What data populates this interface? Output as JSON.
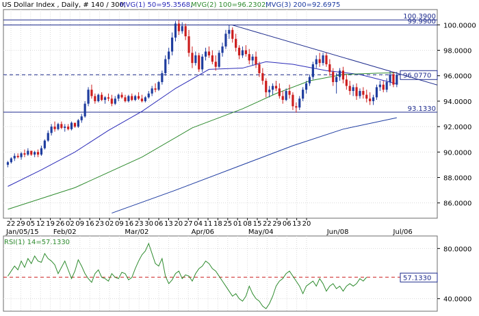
{
  "header": {
    "symbol": "US Dollar Index , Daily, # 140 / 300,",
    "mvg1": "MVG(1) 50=95.3568,",
    "mvg2": "MVG(2) 100=96.2302,",
    "mvg3": "MVG(3) 200=92.6975"
  },
  "colors": {
    "candle_up": "#1f3d9e",
    "candle_down": "#cc1d1d",
    "ma50": "#2a2ab8",
    "ma100": "#2e8b2e",
    "ma200": "#1c3aa0",
    "rsi": "#2e8b2e",
    "hline": "#1c2a8c",
    "dashed": "#1c2a8c",
    "rsi_level": "#cc1d1d"
  },
  "chart_data": [
    {
      "type": "candlestick",
      "title": "US Dollar Index , Daily",
      "ylim": [
        84.8,
        101.2
      ],
      "y_ticks": [
        "100.0000",
        "98.0000",
        "96.0000",
        "94.0000",
        "92.0000",
        "90.0000",
        "88.0000",
        "86.0000"
      ],
      "x_ticks": [
        "22",
        "29",
        "05",
        "12",
        "19",
        "26",
        "02",
        "09",
        "16",
        "23",
        "02",
        "09",
        "16",
        "23",
        "30",
        "06",
        "13",
        "20",
        "27",
        "04",
        "11",
        "18",
        "25",
        "01",
        "08",
        "15",
        "22",
        "29",
        "06",
        "13",
        "20"
      ],
      "month_labels": [
        "Jan/05/15",
        "Feb/02",
        "Mar/02",
        "Apr/06",
        "May/04",
        "Jun/08",
        "Jul/06"
      ],
      "horizontal_lines": [
        {
          "label": "100.3900",
          "value": 100.39
        },
        {
          "label": "99.9900",
          "value": 99.99
        },
        {
          "label": "93.1330",
          "value": 93.133
        }
      ],
      "current_price": {
        "label": "96.0770",
        "value": 96.077
      },
      "trendline": {
        "from": [
          67,
          99.98
        ],
        "to": [
          129,
          95.2
        ]
      },
      "candles": [
        [
          0,
          89.0,
          89.3,
          88.8,
          89.2
        ],
        [
          1,
          89.2,
          89.6,
          89.1,
          89.5
        ],
        [
          2,
          89.5,
          89.9,
          89.3,
          89.7
        ],
        [
          3,
          89.7,
          89.9,
          89.5,
          89.6
        ],
        [
          4,
          89.6,
          90.0,
          89.4,
          89.9
        ],
        [
          5,
          89.9,
          90.2,
          89.6,
          89.8
        ],
        [
          6,
          89.8,
          90.3,
          89.7,
          90.1
        ],
        [
          7,
          90.1,
          90.1,
          89.7,
          89.8
        ],
        [
          8,
          89.8,
          90.1,
          89.6,
          90.0
        ],
        [
          9,
          90.0,
          90.2,
          89.6,
          89.8
        ],
        [
          10,
          89.8,
          90.5,
          89.7,
          90.3
        ],
        [
          11,
          90.3,
          91.0,
          90.2,
          90.9
        ],
        [
          12,
          90.9,
          91.7,
          90.8,
          91.5
        ],
        [
          13,
          91.5,
          92.2,
          91.3,
          92.0
        ],
        [
          14,
          92.0,
          92.4,
          91.6,
          91.8
        ],
        [
          15,
          91.8,
          92.3,
          91.7,
          92.2
        ],
        [
          16,
          92.2,
          92.4,
          91.8,
          91.9
        ],
        [
          17,
          91.9,
          92.2,
          91.6,
          92.0
        ],
        [
          18,
          92.0,
          92.2,
          91.7,
          91.8
        ],
        [
          19,
          91.8,
          92.4,
          91.7,
          92.3
        ],
        [
          20,
          92.3,
          92.3,
          91.9,
          92.0
        ],
        [
          21,
          92.0,
          92.6,
          91.9,
          92.5
        ],
        [
          22,
          92.5,
          93.0,
          92.3,
          92.8
        ],
        [
          23,
          92.8,
          94.0,
          92.7,
          93.8
        ],
        [
          24,
          93.8,
          95.1,
          93.6,
          94.9
        ],
        [
          25,
          94.9,
          95.3,
          94.2,
          94.4
        ],
        [
          26,
          94.4,
          94.6,
          93.8,
          94.0
        ],
        [
          27,
          94.0,
          94.6,
          93.9,
          94.5
        ],
        [
          28,
          94.5,
          94.7,
          94.0,
          94.1
        ],
        [
          29,
          94.1,
          94.4,
          93.8,
          94.3
        ],
        [
          30,
          94.3,
          94.6,
          94.0,
          94.2
        ],
        [
          31,
          94.2,
          94.5,
          93.6,
          93.8
        ],
        [
          32,
          93.8,
          94.4,
          93.7,
          94.2
        ],
        [
          33,
          94.2,
          94.6,
          94.0,
          94.5
        ],
        [
          34,
          94.5,
          94.7,
          94.2,
          94.3
        ],
        [
          35,
          94.3,
          94.5,
          93.9,
          94.0
        ],
        [
          36,
          94.0,
          94.5,
          93.9,
          94.4
        ],
        [
          37,
          94.4,
          94.6,
          94.0,
          94.1
        ],
        [
          38,
          94.1,
          94.5,
          94.0,
          94.4
        ],
        [
          39,
          94.4,
          94.7,
          94.1,
          94.2
        ],
        [
          40,
          94.2,
          94.5,
          93.9,
          94.0
        ],
        [
          41,
          94.0,
          94.4,
          93.9,
          94.3
        ],
        [
          42,
          94.3,
          94.8,
          94.2,
          94.6
        ],
        [
          43,
          94.6,
          95.2,
          94.4,
          95.0
        ],
        [
          44,
          95.0,
          95.4,
          94.7,
          94.9
        ],
        [
          45,
          94.9,
          95.6,
          94.8,
          95.5
        ],
        [
          46,
          95.5,
          96.4,
          95.3,
          96.2
        ],
        [
          47,
          96.2,
          97.6,
          96.0,
          97.3
        ],
        [
          48,
          97.3,
          98.2,
          96.9,
          97.9
        ],
        [
          49,
          97.9,
          99.4,
          97.6,
          99.0
        ],
        [
          50,
          99.0,
          100.3,
          98.7,
          100.1
        ],
        [
          51,
          100.1,
          100.39,
          99.2,
          99.5
        ],
        [
          52,
          99.5,
          100.2,
          99.3,
          99.9
        ],
        [
          53,
          99.9,
          100.1,
          98.8,
          99.1
        ],
        [
          54,
          99.1,
          99.6,
          97.5,
          97.8
        ],
        [
          55,
          97.8,
          98.3,
          96.6,
          97.0
        ],
        [
          56,
          97.0,
          97.9,
          96.8,
          97.6
        ],
        [
          57,
          97.6,
          97.8,
          96.3,
          96.5
        ],
        [
          58,
          96.5,
          97.7,
          96.3,
          97.5
        ],
        [
          59,
          97.5,
          98.2,
          97.2,
          97.9
        ],
        [
          60,
          97.9,
          98.3,
          97.4,
          97.6
        ],
        [
          61,
          97.6,
          98.0,
          96.9,
          97.1
        ],
        [
          62,
          97.1,
          97.6,
          96.4,
          96.7
        ],
        [
          63,
          96.7,
          98.0,
          96.6,
          97.8
        ],
        [
          64,
          97.8,
          98.6,
          97.5,
          98.3
        ],
        [
          65,
          98.3,
          99.6,
          98.1,
          99.3
        ],
        [
          66,
          99.3,
          99.99,
          98.9,
          99.6
        ],
        [
          67,
          99.6,
          99.8,
          98.6,
          98.9
        ],
        [
          68,
          98.9,
          99.3,
          97.9,
          98.2
        ],
        [
          69,
          98.2,
          98.4,
          97.3,
          97.6
        ],
        [
          70,
          97.6,
          98.3,
          97.4,
          98.0
        ],
        [
          71,
          98.0,
          98.4,
          97.5,
          97.7
        ],
        [
          72,
          97.7,
          98.1,
          96.9,
          97.2
        ],
        [
          73,
          97.2,
          97.7,
          96.8,
          97.5
        ],
        [
          74,
          97.5,
          97.9,
          96.6,
          96.9
        ],
        [
          75,
          96.9,
          97.1,
          95.9,
          96.2
        ],
        [
          76,
          96.2,
          96.6,
          95.3,
          95.6
        ],
        [
          77,
          95.6,
          95.8,
          94.3,
          94.7
        ],
        [
          78,
          94.7,
          95.2,
          94.3,
          94.9
        ],
        [
          79,
          94.9,
          95.4,
          94.5,
          95.2
        ],
        [
          80,
          95.2,
          95.6,
          94.8,
          95.0
        ],
        [
          81,
          95.0,
          95.4,
          94.2,
          94.4
        ],
        [
          82,
          94.4,
          94.8,
          93.8,
          94.1
        ],
        [
          83,
          94.1,
          95.0,
          94.0,
          94.8
        ],
        [
          84,
          94.8,
          95.3,
          94.2,
          94.5
        ],
        [
          85,
          94.5,
          94.7,
          93.3,
          93.6
        ],
        [
          86,
          93.6,
          93.9,
          93.1,
          93.5
        ],
        [
          87,
          93.5,
          94.4,
          93.3,
          94.2
        ],
        [
          88,
          94.2,
          95.1,
          94.0,
          94.9
        ],
        [
          89,
          94.9,
          95.6,
          94.6,
          95.4
        ],
        [
          90,
          95.4,
          96.1,
          95.2,
          95.9
        ],
        [
          91,
          95.9,
          97.1,
          95.7,
          96.9
        ],
        [
          92,
          96.9,
          97.6,
          96.6,
          97.3
        ],
        [
          93,
          97.3,
          97.8,
          96.7,
          97.0
        ],
        [
          94,
          97.0,
          97.8,
          96.8,
          97.6
        ],
        [
          95,
          97.6,
          97.8,
          96.7,
          96.9
        ],
        [
          96,
          96.9,
          97.3,
          96.0,
          96.3
        ],
        [
          97,
          96.3,
          96.6,
          95.2,
          95.5
        ],
        [
          98,
          95.5,
          96.2,
          94.6,
          95.9
        ],
        [
          99,
          95.9,
          96.6,
          95.6,
          96.4
        ],
        [
          100,
          96.4,
          96.7,
          95.4,
          95.7
        ],
        [
          101,
          95.7,
          96.1,
          94.9,
          95.2
        ],
        [
          102,
          95.2,
          95.6,
          94.5,
          94.8
        ],
        [
          103,
          94.8,
          95.3,
          94.4,
          95.1
        ],
        [
          104,
          95.1,
          95.4,
          94.1,
          94.4
        ],
        [
          105,
          94.4,
          95.0,
          94.2,
          94.8
        ],
        [
          106,
          94.8,
          95.1,
          94.2,
          94.5
        ],
        [
          107,
          94.5,
          94.9,
          93.9,
          94.2
        ],
        [
          108,
          94.2,
          94.7,
          93.7,
          94.0
        ],
        [
          109,
          94.0,
          94.5,
          93.7,
          94.3
        ],
        [
          110,
          94.3,
          95.3,
          94.1,
          95.1
        ],
        [
          111,
          95.1,
          95.6,
          94.8,
          95.3
        ],
        [
          112,
          95.3,
          95.6,
          94.7,
          94.9
        ],
        [
          113,
          94.9,
          95.8,
          94.7,
          95.5
        ],
        [
          114,
          95.5,
          96.4,
          95.2,
          96.1
        ],
        [
          115,
          96.1,
          96.3,
          95.1,
          95.3
        ],
        [
          116,
          95.3,
          96.3,
          95.1,
          96.077
        ]
      ],
      "ma50": [
        [
          0,
          87.3
        ],
        [
          10,
          88.6
        ],
        [
          20,
          90.0
        ],
        [
          30,
          91.7
        ],
        [
          40,
          93.2
        ],
        [
          50,
          95.0
        ],
        [
          60,
          96.5
        ],
        [
          70,
          96.6
        ],
        [
          77,
          97.1
        ],
        [
          85,
          96.9
        ],
        [
          95,
          96.4
        ],
        [
          105,
          96.1
        ],
        [
          116,
          95.36
        ]
      ],
      "ma100": [
        [
          0,
          85.5
        ],
        [
          20,
          87.2
        ],
        [
          40,
          89.6
        ],
        [
          55,
          91.9
        ],
        [
          70,
          93.4
        ],
        [
          80,
          94.6
        ],
        [
          90,
          95.6
        ],
        [
          100,
          96.1
        ],
        [
          110,
          96.2
        ],
        [
          116,
          96.23
        ]
      ],
      "ma200": [
        [
          31,
          85.2
        ],
        [
          50,
          87.0
        ],
        [
          70,
          89.0
        ],
        [
          85,
          90.5
        ],
        [
          100,
          91.8
        ],
        [
          116,
          92.7
        ]
      ]
    },
    {
      "type": "line",
      "title": "RSI(1) 14=57.1330",
      "ylim": [
        30,
        90
      ],
      "y_ticks": [
        "80.0000",
        "40.0000"
      ],
      "level": {
        "label": "57.1330",
        "value": 57.133
      },
      "series": [
        {
          "name": "RSI(1) 14=57.1330",
          "values": [
            58,
            62,
            66,
            63,
            70,
            65,
            72,
            68,
            74,
            70,
            69,
            76,
            72,
            70,
            67,
            60,
            65,
            70,
            63,
            56,
            62,
            71,
            66,
            60,
            56,
            53,
            60,
            63,
            57,
            56,
            54,
            60,
            57,
            56,
            61,
            60,
            55,
            57,
            64,
            70,
            75,
            78,
            84,
            76,
            68,
            66,
            72,
            58,
            52,
            55,
            60,
            62,
            56,
            59,
            58,
            54,
            60,
            64,
            66,
            70,
            68,
            64,
            62,
            58,
            54,
            50,
            46,
            42,
            44,
            40,
            38,
            42,
            50,
            44,
            40,
            38,
            34,
            32,
            36,
            42,
            50,
            54,
            56,
            60,
            62,
            58,
            54,
            50,
            44,
            50,
            52,
            54,
            50,
            56,
            52,
            46,
            50,
            52,
            48,
            50,
            46,
            50,
            52,
            50,
            52,
            56,
            54,
            57.133
          ]
        }
      ]
    }
  ]
}
